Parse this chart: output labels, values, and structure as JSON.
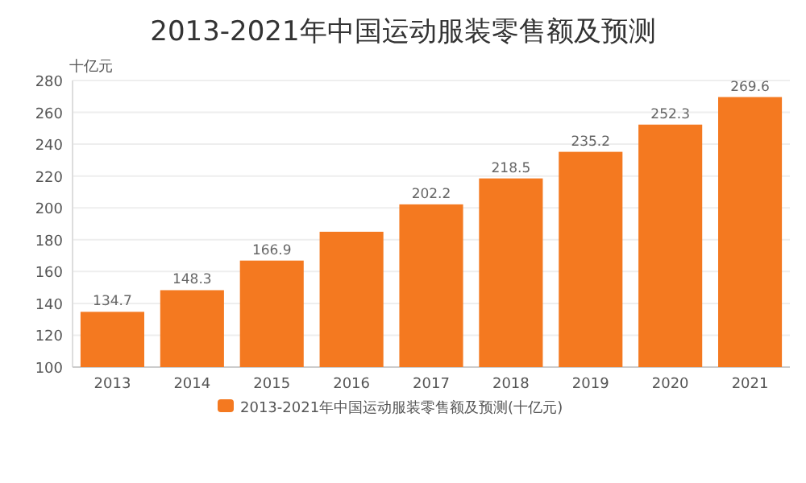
{
  "chart_data": {
    "type": "bar",
    "title": "2013-2021年中国运动服装零售额及预测",
    "ylabel": "十亿元",
    "categories": [
      "2013",
      "2014",
      "2015",
      "2016",
      "2017",
      "2018",
      "2019",
      "2020",
      "2021"
    ],
    "series": [
      {
        "name": "2013-2021年中国运动服装零售额及预测(十亿元)",
        "color": "#f47920",
        "values": [
          134.7,
          148.3,
          166.9,
          185,
          202.2,
          218.5,
          235.2,
          252.3,
          269.6
        ],
        "value_labels": [
          "134.7",
          "148.3",
          "166.9",
          null,
          "202.2",
          "218.5",
          "235.2",
          "252.3",
          "269.6"
        ]
      }
    ],
    "ylim": [
      100,
      280
    ],
    "yticks": [
      100,
      120,
      140,
      160,
      180,
      200,
      220,
      240,
      260,
      280
    ],
    "grid": "y",
    "legend": "bottom"
  }
}
